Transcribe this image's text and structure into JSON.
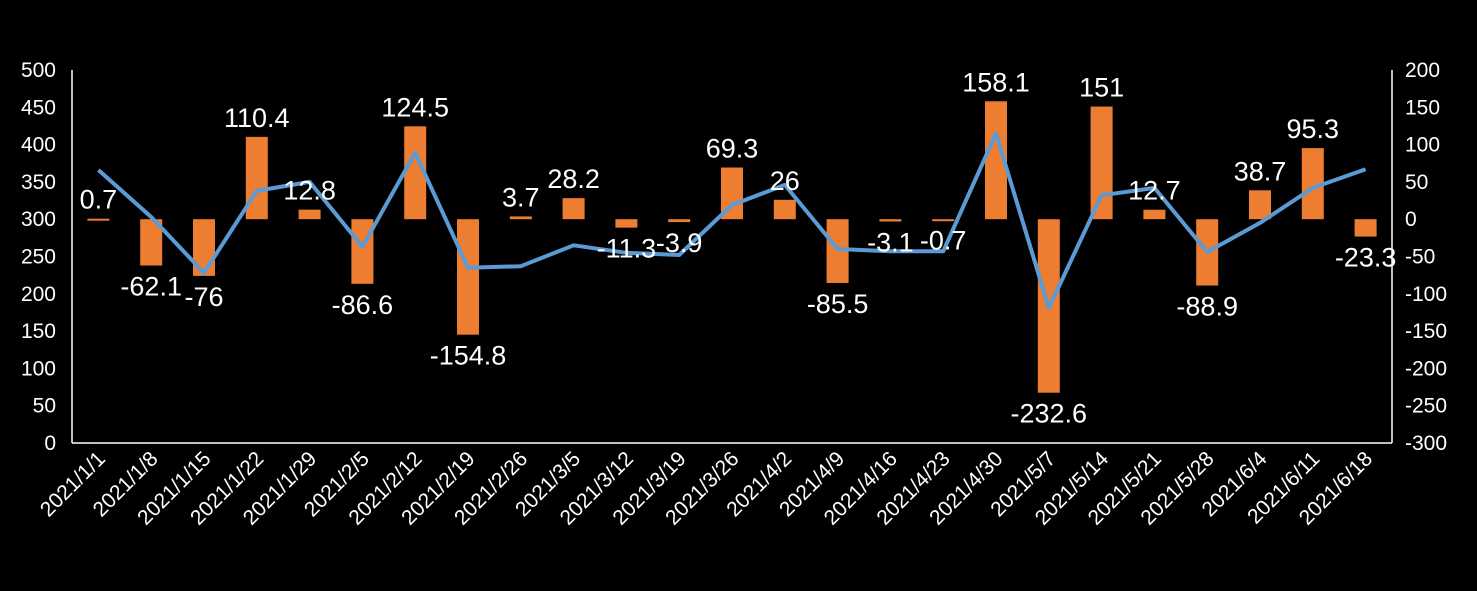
{
  "chart_data": {
    "type": "bar+line",
    "title": "",
    "categories": [
      "2021/1/1",
      "2021/1/8",
      "2021/1/15",
      "2021/1/22",
      "2021/1/29",
      "2021/2/5",
      "2021/2/12",
      "2021/2/19",
      "2021/2/26",
      "2021/3/5",
      "2021/3/12",
      "2021/3/19",
      "2021/3/26",
      "2021/4/2",
      "2021/4/9",
      "2021/4/16",
      "2021/4/23",
      "2021/4/30",
      "2021/5/7",
      "2021/5/14",
      "2021/5/21",
      "2021/5/28",
      "2021/6/4",
      "2021/6/11",
      "2021/6/18"
    ],
    "series": [
      {
        "name": "bar",
        "type": "bar",
        "axis": "right",
        "color": "#ed7d31",
        "values": [
          0.7,
          -62.1,
          -76,
          110.4,
          12.8,
          -86.6,
          124.5,
          -154.8,
          3.7,
          28.2,
          -11.3,
          -3.9,
          69.3,
          26,
          -85.5,
          -3.1,
          -0.7,
          158.1,
          -232.6,
          151,
          12.7,
          -88.9,
          38.7,
          95.3,
          -23.3
        ],
        "labels": [
          "0.7",
          "-62.1",
          "-76",
          "110.4",
          "12.8",
          "-86.6",
          "124.5",
          "-154.8",
          "3.7",
          "28.2",
          "-11.3",
          "-3.9",
          "69.3",
          "26",
          "-85.5",
          "-3.1",
          "-0.7",
          "158.1",
          "-232.6",
          "151",
          "12.7",
          "-88.9",
          "38.7",
          "95.3",
          "-23.3"
        ]
      },
      {
        "name": "line",
        "type": "line",
        "axis": "left",
        "color": "#5b9bd5",
        "values": [
          366,
          303,
          228,
          338,
          350,
          263,
          389,
          235,
          237,
          265,
          255,
          252,
          319,
          346,
          260,
          257,
          257,
          415,
          181,
          332,
          342,
          256,
          295,
          342,
          367
        ]
      }
    ],
    "left_axis": {
      "ylim": [
        0,
        500
      ],
      "ticks": [
        "0",
        "50",
        "100",
        "150",
        "200",
        "250",
        "300",
        "350",
        "400",
        "450",
        "500"
      ]
    },
    "right_axis": {
      "ylim": [
        -300,
        200
      ],
      "ticks": [
        "-300",
        "-250",
        "-200",
        "-150",
        "-100",
        "-50",
        "0",
        "50",
        "100",
        "150",
        "200"
      ]
    },
    "grid": false,
    "legend": "none"
  }
}
